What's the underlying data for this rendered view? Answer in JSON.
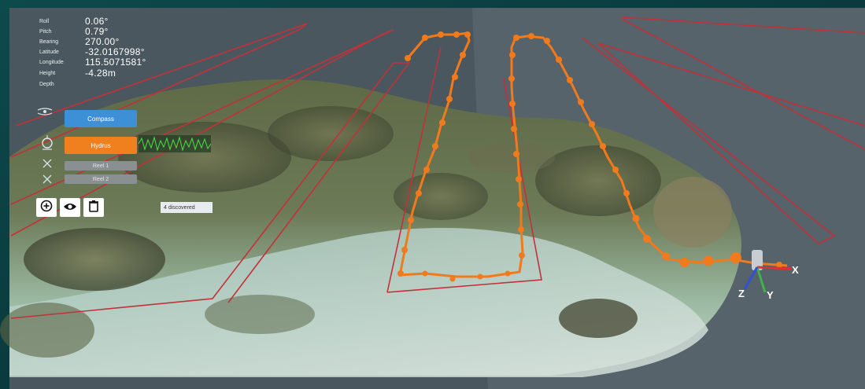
{
  "telemetry": [
    {
      "label": "Roll",
      "value": "0.06°"
    },
    {
      "label": "Pitch",
      "value": "0.79°"
    },
    {
      "label": "Bearing",
      "value": "270.00°"
    },
    {
      "label": "Latitude",
      "value": "-32.0167998°"
    },
    {
      "label": "Longitude",
      "value": "115.5071581°"
    },
    {
      "label": "Height",
      "value": "-4.28m"
    },
    {
      "label": "Depth",
      "value": ""
    }
  ],
  "panel": {
    "compass_label": "Compass",
    "hydrus_label": "Hydrus",
    "reel1_label": "Reel 1",
    "reel2_label": "Reel 2"
  },
  "toolbar": {
    "add_icon": "plus-circle-icon",
    "view_icon": "eye-icon",
    "delete_icon": "trash-icon"
  },
  "status_badge": "4 discovered",
  "axes": {
    "x": "X",
    "y": "Y",
    "z": "Z"
  },
  "colors": {
    "survey_path": "#f07a1c",
    "boundary_lines": "#c2313a",
    "compass_button": "#3d8fd6",
    "hydrus_button": "#f07f1e",
    "reel_button": "#8a8f92",
    "background": "#0b3a3e"
  }
}
